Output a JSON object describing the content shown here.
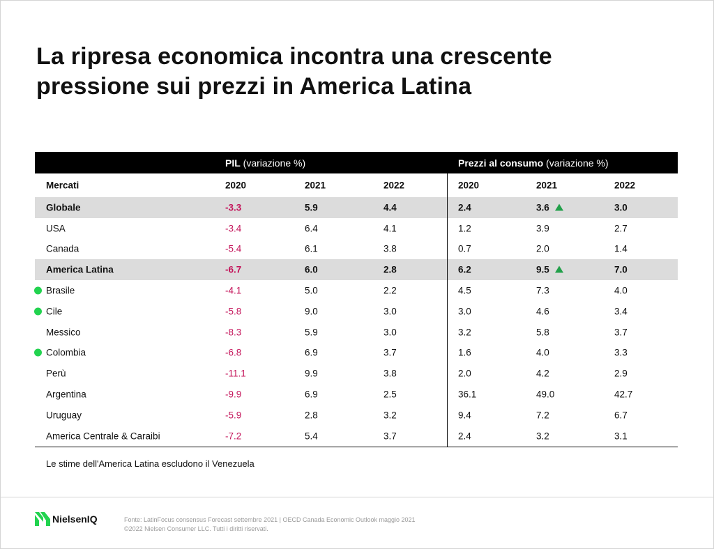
{
  "title": "La ripresa economica incontra una crescente pressione sui prezzi in America Latina",
  "colors": {
    "negative": "#c4145a",
    "highlight_row": "#dcdcdc",
    "header_bg": "#000000",
    "dot": "#22d34f",
    "arrow": "#22a04a"
  },
  "chart_data": {
    "type": "table",
    "groups": [
      {
        "bold": "PIL",
        "normal": "(variazione %)"
      },
      {
        "bold": "Prezzi al consumo",
        "normal": "(variazione %)"
      }
    ],
    "columns": [
      "Mercati",
      "2020",
      "2021",
      "2022",
      "2020",
      "2021",
      "2022"
    ],
    "rows": [
      {
        "market": "Globale",
        "highlight": true,
        "dot": false,
        "values": [
          "-3.3",
          "5.9",
          "4.4",
          "2.4",
          "3.6",
          "3.0"
        ],
        "arrow_col": 4
      },
      {
        "market": "USA",
        "highlight": false,
        "dot": false,
        "values": [
          "-3.4",
          "6.4",
          "4.1",
          "1.2",
          "3.9",
          "2.7"
        ],
        "arrow_col": -1
      },
      {
        "market": "Canada",
        "highlight": false,
        "dot": false,
        "values": [
          "-5.4",
          "6.1",
          "3.8",
          "0.7",
          "2.0",
          "1.4"
        ],
        "arrow_col": -1
      },
      {
        "market": "America Latina",
        "highlight": true,
        "dot": false,
        "values": [
          "-6.7",
          "6.0",
          "2.8",
          "6.2",
          "9.5",
          "7.0"
        ],
        "arrow_col": 4
      },
      {
        "market": "Brasile",
        "highlight": false,
        "dot": true,
        "values": [
          "-4.1",
          "5.0",
          "2.2",
          "4.5",
          "7.3",
          "4.0"
        ],
        "arrow_col": -1
      },
      {
        "market": "Cile",
        "highlight": false,
        "dot": true,
        "values": [
          "-5.8",
          "9.0",
          "3.0",
          "3.0",
          "4.6",
          "3.4"
        ],
        "arrow_col": -1
      },
      {
        "market": "Messico",
        "highlight": false,
        "dot": false,
        "values": [
          "-8.3",
          "5.9",
          "3.0",
          "3.2",
          "5.8",
          "3.7"
        ],
        "arrow_col": -1
      },
      {
        "market": "Colombia",
        "highlight": false,
        "dot": true,
        "values": [
          "-6.8",
          "6.9",
          "3.7",
          "1.6",
          "4.0",
          "3.3"
        ],
        "arrow_col": -1
      },
      {
        "market": "Perù",
        "highlight": false,
        "dot": false,
        "values": [
          "-11.1",
          "9.9",
          "3.8",
          "2.0",
          "4.2",
          "2.9"
        ],
        "arrow_col": -1
      },
      {
        "market": "Argentina",
        "highlight": false,
        "dot": false,
        "values": [
          "-9.9",
          "6.9",
          "2.5",
          "36.1",
          "49.0",
          "42.7"
        ],
        "arrow_col": -1
      },
      {
        "market": "Uruguay",
        "highlight": false,
        "dot": false,
        "values": [
          "-5.9",
          "2.8",
          "3.2",
          "9.4",
          "7.2",
          "6.7"
        ],
        "arrow_col": -1
      },
      {
        "market": "America Centrale & Caraibi",
        "highlight": false,
        "dot": false,
        "values": [
          "-7.2",
          "5.4",
          "3.7",
          "2.4",
          "3.2",
          "3.1"
        ],
        "arrow_col": -1
      }
    ]
  },
  "note": "Le stime dell'America Latina escludono il Venezuela",
  "footer": {
    "logo_text": "NielsenIQ",
    "source_line1": "Fonte: LatinFocus consensus Forecast settembre 2021 | OECD Canada Economic Outlook maggio 2021",
    "source_line2": "©2022 Nielsen Consumer LLC. Tutti i diritti riservati."
  }
}
